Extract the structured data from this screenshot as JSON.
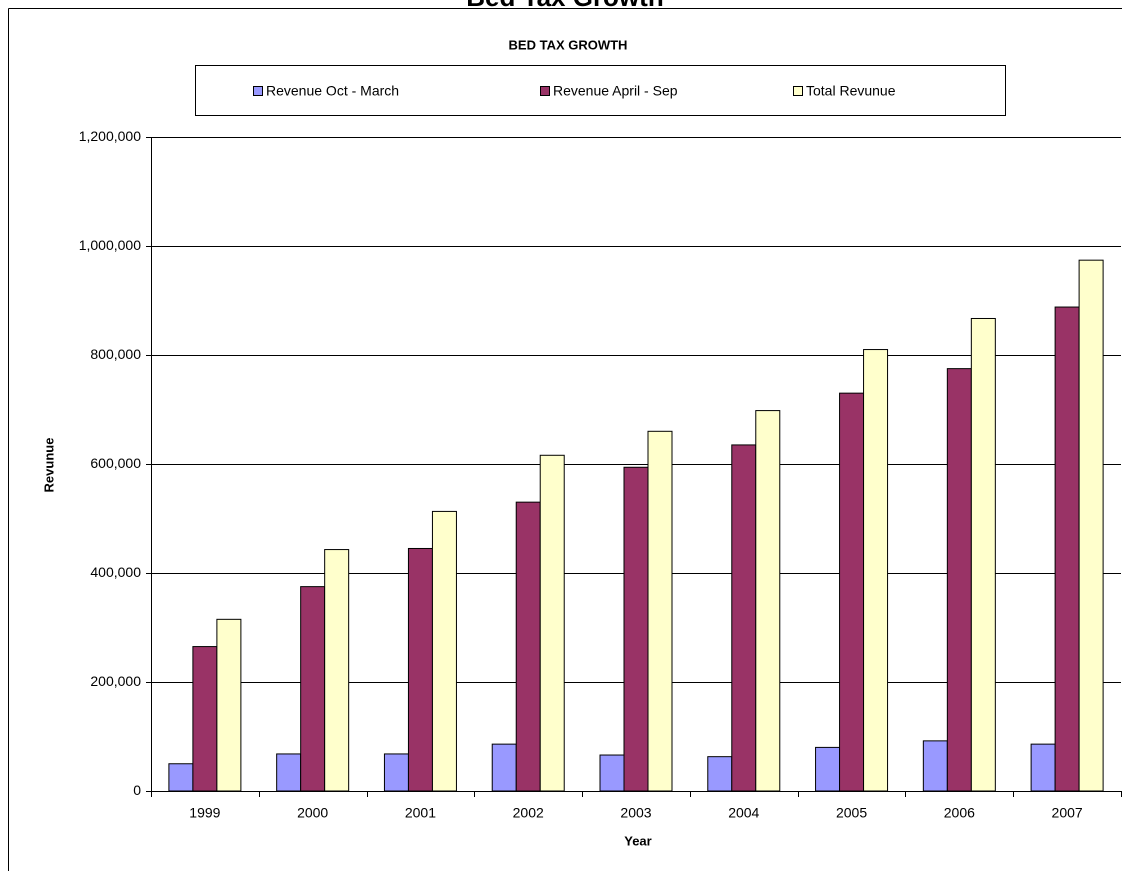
{
  "page_title": "Bed Tax Growth",
  "chart_data": {
    "type": "bar",
    "title": "BED TAX GROWTH",
    "x_label": "Year",
    "y_label": "Revunue",
    "categories": [
      "1999",
      "2000",
      "2001",
      "2002",
      "2003",
      "2004",
      "2005",
      "2006",
      "2007"
    ],
    "series": [
      {
        "name": "Revenue Oct - March",
        "color": "#9999ff",
        "values": [
          50000,
          68000,
          68000,
          86000,
          66000,
          63000,
          80000,
          92000,
          86000
        ]
      },
      {
        "name": "Revenue April - Sep",
        "color": "#993366",
        "values": [
          265000,
          375000,
          445000,
          530000,
          594000,
          635000,
          730000,
          775000,
          888000
        ]
      },
      {
        "name": "Total Revunue",
        "color": "#ffffcc",
        "values": [
          315000,
          443000,
          513000,
          616000,
          660000,
          698000,
          810000,
          867000,
          974000
        ]
      }
    ],
    "ylim": [
      0,
      1200000
    ],
    "yticks": [
      0,
      {
        "value": 200000,
        "label": "200,000"
      },
      {
        "value": 400000,
        "label": "400,000"
      },
      {
        "value": 600000,
        "label": "600,000"
      },
      {
        "value": 800000,
        "label": "800,000"
      },
      {
        "value": 1000000,
        "label": "1,000,000"
      },
      {
        "value": 1200000,
        "label": "1,200,000"
      }
    ],
    "grid": true,
    "legend": "top"
  }
}
